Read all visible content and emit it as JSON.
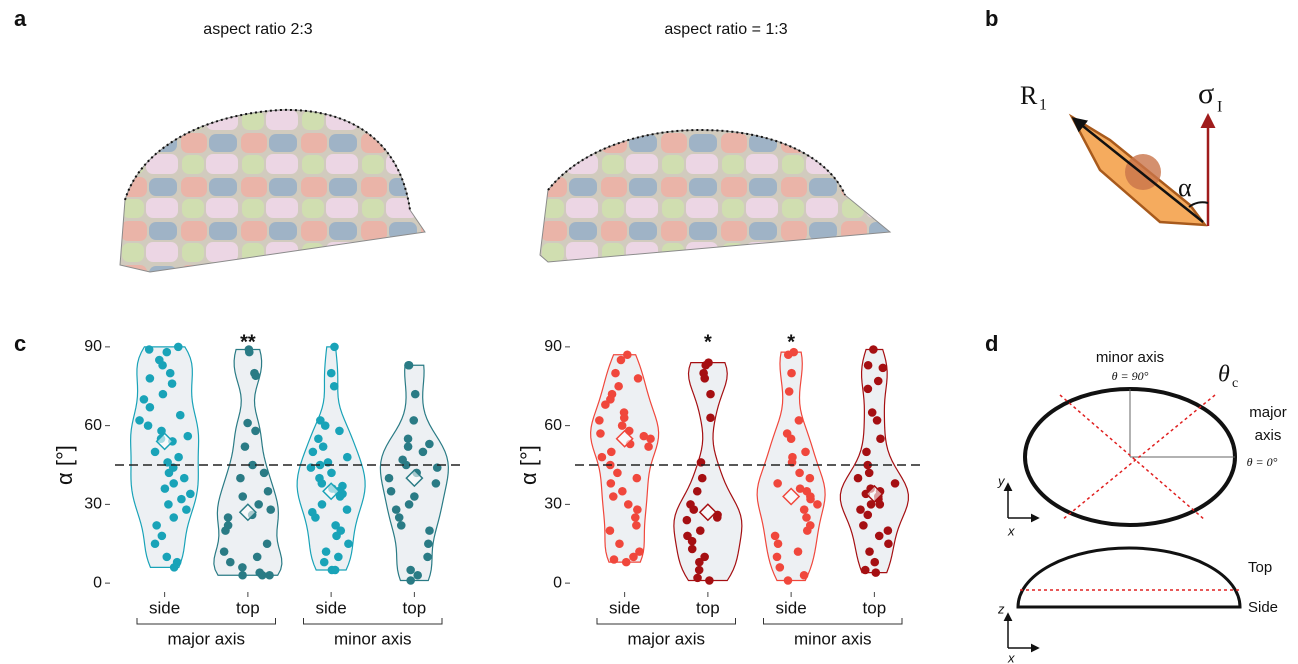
{
  "panels": {
    "a": {
      "letter": "a",
      "left_title": "aspect ratio 2:3",
      "right_title": "aspect ratio = 1:3"
    },
    "b": {
      "letter": "b",
      "r": "R",
      "r_sub": "1",
      "sigma": "σ",
      "sigma_sub": "I",
      "alpha": "α"
    },
    "c": {
      "letter": "c"
    },
    "d": {
      "letter": "d",
      "minor": "minor axis",
      "theta90": "θ = 90°",
      "theta": "θ",
      "theta_sub": "c",
      "major1": "major",
      "major2": "axis",
      "theta0": "θ = 0°",
      "y": "y",
      "x1": "x",
      "z": "z",
      "x2": "x",
      "top": "Top",
      "side": "Side"
    }
  },
  "chart_data": [
    {
      "type": "violin",
      "ylabel": "α [°]",
      "ylim": [
        -3,
        93
      ],
      "yticks": [
        0,
        30,
        60,
        90
      ],
      "reference_line": 45,
      "categories": [
        "side",
        "top",
        "side",
        "top"
      ],
      "groups": [
        "major axis",
        "minor axis"
      ],
      "violins": [
        {
          "color": "#19a3b8",
          "mean": 54,
          "values": [
            90,
            89,
            88,
            85,
            83,
            80,
            78,
            76,
            72,
            70,
            67,
            64,
            62,
            60,
            58,
            56,
            55,
            54,
            50,
            48,
            46,
            44,
            42,
            40,
            38,
            36,
            34,
            32,
            30,
            28,
            25,
            22,
            18,
            15,
            10,
            8,
            6
          ]
        },
        {
          "color": "#2a7b85",
          "mean": 27,
          "annotation": "**",
          "values": [
            89,
            88,
            80,
            79,
            61,
            58,
            52,
            45,
            42,
            40,
            35,
            33,
            30,
            28,
            26,
            25,
            22,
            20,
            15,
            12,
            10,
            8,
            6,
            4,
            3,
            3,
            3
          ]
        },
        {
          "color": "#19a3b8",
          "mean": 35,
          "values": [
            90,
            80,
            75,
            62,
            60,
            58,
            55,
            52,
            50,
            48,
            46,
            45,
            44,
            42,
            40,
            38,
            37,
            36,
            35,
            34,
            33,
            30,
            28,
            27,
            25,
            22,
            20,
            18,
            15,
            12,
            10,
            8,
            5,
            5
          ]
        },
        {
          "color": "#2a7b85",
          "mean": 40,
          "values": [
            83,
            83,
            72,
            62,
            55,
            53,
            52,
            50,
            47,
            45,
            44,
            42,
            40,
            38,
            35,
            33,
            30,
            28,
            25,
            22,
            20,
            15,
            10,
            5,
            3,
            1
          ]
        }
      ]
    },
    {
      "type": "violin",
      "ylabel": "α [°]",
      "ylim": [
        -3,
        93
      ],
      "yticks": [
        0,
        30,
        60,
        90
      ],
      "reference_line": 45,
      "categories": [
        "side",
        "top",
        "side",
        "top"
      ],
      "groups": [
        "major axis",
        "minor axis"
      ],
      "violins": [
        {
          "color": "#f0473c",
          "mean": 55,
          "values": [
            87,
            85,
            80,
            78,
            75,
            72,
            70,
            68,
            65,
            63,
            62,
            60,
            58,
            57,
            56,
            55,
            53,
            52,
            50,
            48,
            45,
            42,
            40,
            38,
            35,
            33,
            30,
            28,
            25,
            22,
            20,
            15,
            12,
            10,
            9,
            8
          ]
        },
        {
          "color": "#a50f12",
          "mean": 27,
          "annotation": "*",
          "values": [
            84,
            83,
            80,
            78,
            72,
            63,
            46,
            40,
            35,
            30,
            28,
            26,
            25,
            24,
            20,
            18,
            16,
            13,
            10,
            8,
            5,
            2,
            1
          ]
        },
        {
          "color": "#f0473c",
          "mean": 33,
          "annotation": "*",
          "values": [
            88,
            87,
            80,
            73,
            62,
            57,
            55,
            50,
            48,
            46,
            42,
            40,
            38,
            36,
            35,
            33,
            32,
            30,
            28,
            25,
            22,
            20,
            18,
            15,
            12,
            10,
            6,
            3,
            1
          ]
        },
        {
          "color": "#a50f12",
          "mean": 34,
          "values": [
            89,
            83,
            82,
            77,
            74,
            65,
            62,
            55,
            50,
            45,
            42,
            40,
            38,
            36,
            35,
            34,
            33,
            32,
            30,
            30,
            28,
            26,
            22,
            20,
            18,
            15,
            12,
            8,
            5,
            4
          ]
        }
      ]
    }
  ]
}
